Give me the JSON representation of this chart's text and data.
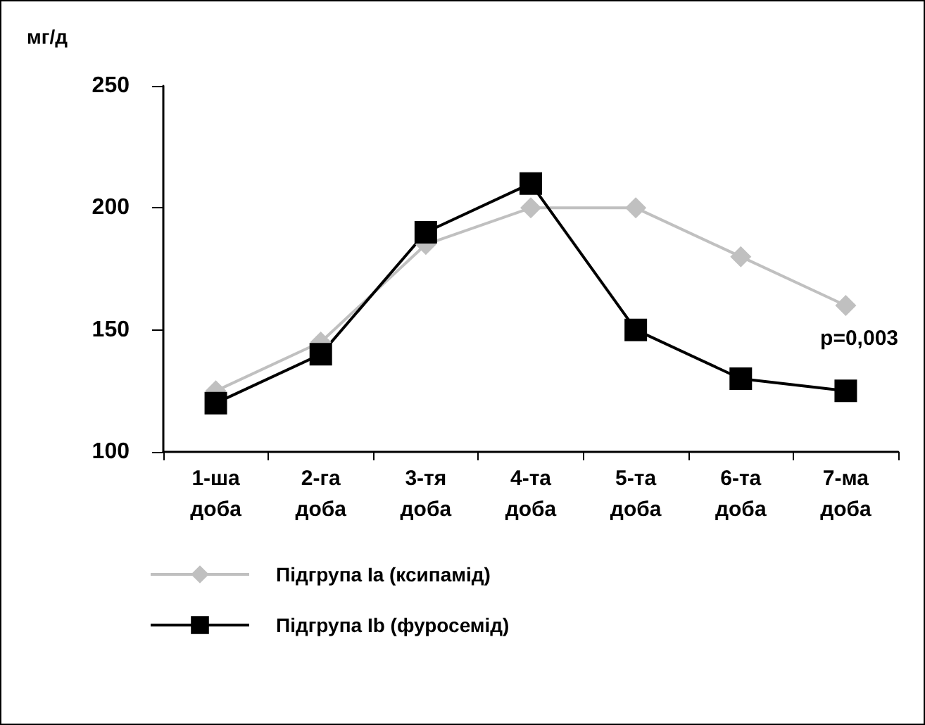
{
  "chart_data": {
    "type": "line",
    "ylabel": "мг/д",
    "categories": [
      "1-ша доба",
      "2-га доба",
      "3-тя доба",
      "4-та доба",
      "5-та доба",
      "6-та доба",
      "7-ма доба"
    ],
    "series": [
      {
        "name": "Підгрупа Ia (ксипамід)",
        "color": "#c0c0c0",
        "marker": "diamond",
        "values": [
          125,
          145,
          185,
          200,
          200,
          180,
          160
        ]
      },
      {
        "name": "Підгрупа Ib (фуросемід)",
        "color": "#000000",
        "marker": "square",
        "values": [
          120,
          140,
          190,
          210,
          150,
          130,
          125
        ]
      }
    ],
    "ylim": [
      100,
      250
    ],
    "yticks": [
      100,
      150,
      200,
      250
    ],
    "grid": false,
    "legend": "bottom left",
    "line_style": "solid",
    "annotations": [
      "p=0,003"
    ]
  }
}
